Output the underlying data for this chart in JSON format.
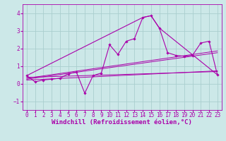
{
  "xlabel": "Windchill (Refroidissement éolien,°C)",
  "bg_color": "#cce8e8",
  "grid_color": "#aacece",
  "line_color": "#aa00aa",
  "xlim": [
    -0.5,
    23.5
  ],
  "ylim": [
    -1.5,
    4.5
  ],
  "xticks": [
    0,
    1,
    2,
    3,
    4,
    5,
    6,
    7,
    8,
    9,
    10,
    11,
    12,
    13,
    14,
    15,
    16,
    17,
    18,
    19,
    20,
    21,
    22,
    23
  ],
  "yticks": [
    -1,
    0,
    1,
    2,
    3,
    4
  ],
  "series1_x": [
    0,
    1,
    2,
    3,
    4,
    5,
    6,
    7,
    8,
    9,
    10,
    11,
    12,
    13,
    14,
    15,
    16,
    17,
    18,
    19,
    20,
    21,
    22,
    23
  ],
  "series1_y": [
    0.45,
    0.1,
    0.2,
    0.25,
    0.3,
    0.55,
    0.65,
    -0.55,
    0.45,
    0.6,
    2.2,
    1.65,
    2.4,
    2.55,
    3.75,
    3.85,
    3.15,
    1.75,
    1.6,
    1.55,
    1.6,
    2.3,
    2.4,
    0.5
  ],
  "series2_x": [
    0,
    14,
    15,
    16,
    23
  ],
  "series2_y": [
    0.45,
    3.75,
    3.85,
    3.15,
    0.5
  ],
  "reg_lines": [
    {
      "x": [
        0,
        23
      ],
      "y": [
        0.3,
        1.85
      ]
    },
    {
      "x": [
        0,
        23
      ],
      "y": [
        0.25,
        1.75
      ]
    },
    {
      "x": [
        0,
        23
      ],
      "y": [
        0.2,
        0.72
      ]
    },
    {
      "x": [
        0,
        23
      ],
      "y": [
        0.35,
        0.68
      ]
    }
  ],
  "font_size_label": 6.5,
  "font_size_tick": 5.5
}
